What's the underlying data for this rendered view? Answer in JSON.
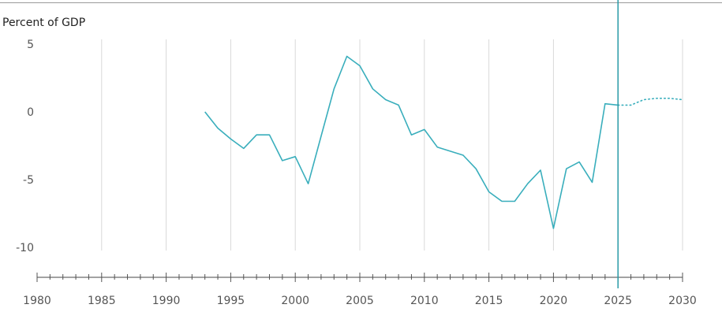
{
  "chart_data": {
    "type": "line",
    "title": "",
    "ylabel": "Percent of GDP",
    "xlabel": "",
    "xlim": [
      1980,
      2030
    ],
    "ylim": [
      -12,
      5
    ],
    "x_tick_labels": [
      "1980",
      "1985",
      "1990",
      "1995",
      "2000",
      "2005",
      "2010",
      "2015",
      "2020",
      "2025",
      "2030"
    ],
    "y_tick_labels": [
      "5",
      "0",
      "-5",
      "-10"
    ],
    "y_tick_values": [
      5,
      0,
      -5,
      -10
    ],
    "x_tick_values": [
      1980,
      1985,
      1990,
      1995,
      2000,
      2005,
      2010,
      2015,
      2020,
      2025,
      2030
    ],
    "grid": true,
    "forecast_start": 2025,
    "series": [
      {
        "color": "#39aebc",
        "x": [
          1993,
          1994,
          1995,
          1996,
          1997,
          1998,
          1999,
          2000,
          2001,
          2002,
          2003,
          2004,
          2005,
          2006,
          2007,
          2008,
          2009,
          2010,
          2011,
          2012,
          2013,
          2014,
          2015,
          2016,
          2017,
          2018,
          2019,
          2020,
          2021,
          2022,
          2023,
          2024,
          2025,
          2026,
          2027,
          2028,
          2029,
          2030
        ],
        "values": [
          0.0,
          -1.2,
          -2.0,
          -2.7,
          -1.7,
          -1.7,
          -3.6,
          -3.3,
          -5.3,
          -1.8,
          1.7,
          4.1,
          3.4,
          1.7,
          0.9,
          0.5,
          -1.7,
          -1.3,
          -2.6,
          -2.9,
          -3.2,
          -4.2,
          -5.9,
          -6.6,
          -6.6,
          -5.3,
          -4.3,
          -8.6,
          -4.2,
          -3.7,
          -5.2,
          0.6,
          0.5,
          0.5,
          0.9,
          1.0,
          1.0,
          0.9
        ]
      }
    ]
  }
}
